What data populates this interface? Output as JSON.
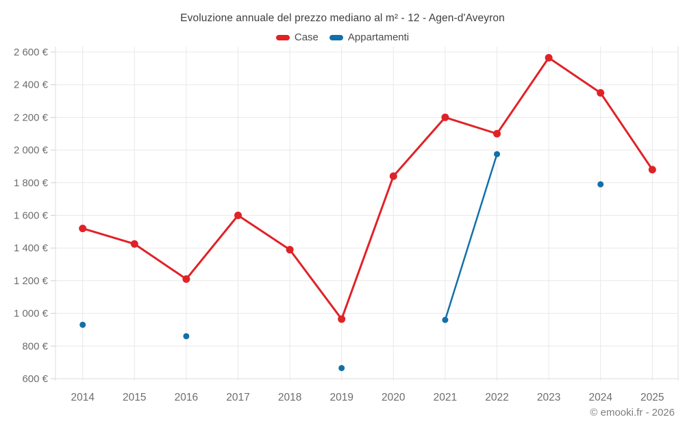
{
  "footer": "© emooki.fr - 2026",
  "chart_data": {
    "type": "line",
    "title": "Evoluzione annuale del prezzo mediano al m² - 12 - Agen-d'Aveyron",
    "x": [
      "2014",
      "2015",
      "2016",
      "2017",
      "2018",
      "2019",
      "2020",
      "2021",
      "2022",
      "2023",
      "2024",
      "2025"
    ],
    "series": [
      {
        "name": "Case",
        "color": "#e02227",
        "values": [
          1520,
          1425,
          1210,
          1600,
          1390,
          965,
          1840,
          2200,
          2100,
          2565,
          2350,
          1880
        ]
      },
      {
        "name": "Appartamenti",
        "color": "#1270a8",
        "values": [
          930,
          null,
          860,
          null,
          null,
          665,
          null,
          960,
          1975,
          null,
          1790,
          null
        ]
      }
    ],
    "ylim": [
      600,
      2600
    ],
    "ytick_step": 200,
    "ytick_suffix": " €",
    "grid": true,
    "legend_position": "top",
    "colors": {
      "gridline": "#e8e8e8",
      "axis_border": "#dddddd",
      "tick": "#cfcfcf",
      "axis_label": "#6d6d6d"
    }
  }
}
